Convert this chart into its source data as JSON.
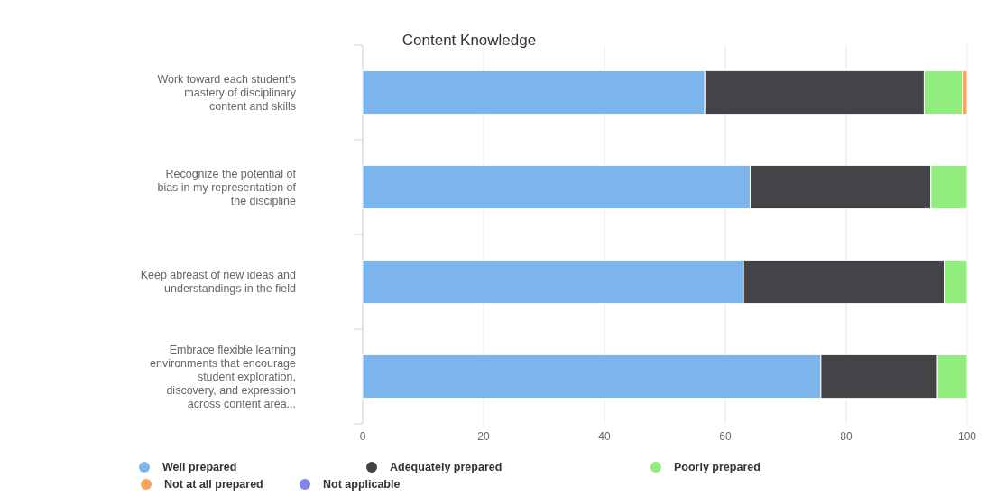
{
  "chart_data": {
    "type": "bar",
    "title": "Content Knowledge",
    "orientation": "horizontal",
    "stacked": true,
    "categories": [
      "Work toward each student's mastery of disciplinary content and skills",
      "Recognize the potential of bias in my representation of the discipline",
      "Keep abreast of new ideas and understandings in the field",
      "Embrace flexible learning environments that encourage student exploration, discovery, and expression across content area..."
    ],
    "series": [
      {
        "name": "Well prepared",
        "color": "#7cb5ec",
        "values": [
          56.6,
          64.1,
          63.0,
          75.8
        ]
      },
      {
        "name": "Adequately prepared",
        "color": "#434348",
        "values": [
          36.3,
          29.9,
          33.2,
          19.3
        ]
      },
      {
        "name": "Poorly prepared",
        "color": "#90ed7d",
        "values": [
          6.3,
          6.0,
          3.8,
          4.9
        ]
      },
      {
        "name": "Not at all prepared",
        "color": "#f7a35c",
        "values": [
          0.8,
          0,
          0,
          0
        ]
      },
      {
        "name": "Not applicable",
        "color": "#8085e9",
        "values": [
          0,
          0,
          0,
          0
        ]
      }
    ],
    "xlim": [
      0,
      100
    ],
    "xticks": [
      0,
      20,
      40,
      60,
      80,
      100
    ],
    "grid": "x",
    "legend": "bottom"
  }
}
